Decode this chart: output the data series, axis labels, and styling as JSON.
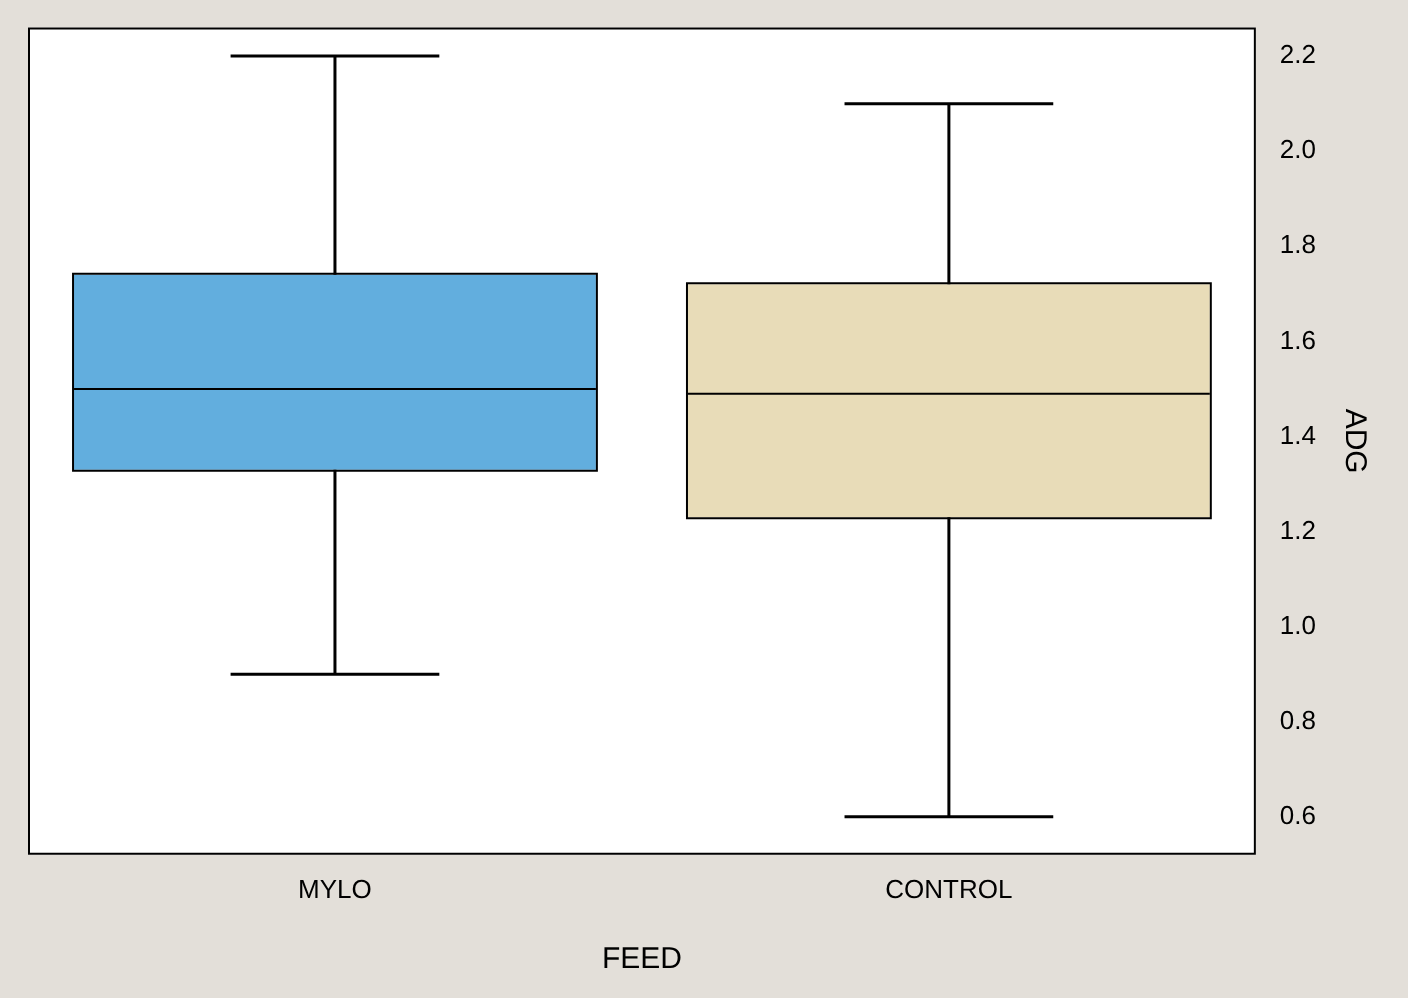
{
  "chart_data": {
    "type": "box",
    "xlabel": "FEED",
    "ylabel": "ADG",
    "categories": [
      "MYLO",
      "CONTROL"
    ],
    "boxes": [
      {
        "low": 0.9,
        "q1": 1.33,
        "median": 1.5,
        "q3": 1.74,
        "high": 2.2
      },
      {
        "low": 0.6,
        "q1": 1.23,
        "median": 1.49,
        "q3": 1.72,
        "high": 2.1
      }
    ],
    "colors": [
      "#62aede",
      "#e8dcb8"
    ],
    "ylim": [
      0.52,
      2.26
    ],
    "yticks": [
      0.6,
      0.8,
      {
        "value": 1,
        "label": "1.0"
      },
      1.2,
      1.4,
      1.6,
      1.8,
      {
        "value": 2,
        "label": "2.0"
      },
      2.2
    ],
    "grid": false
  }
}
